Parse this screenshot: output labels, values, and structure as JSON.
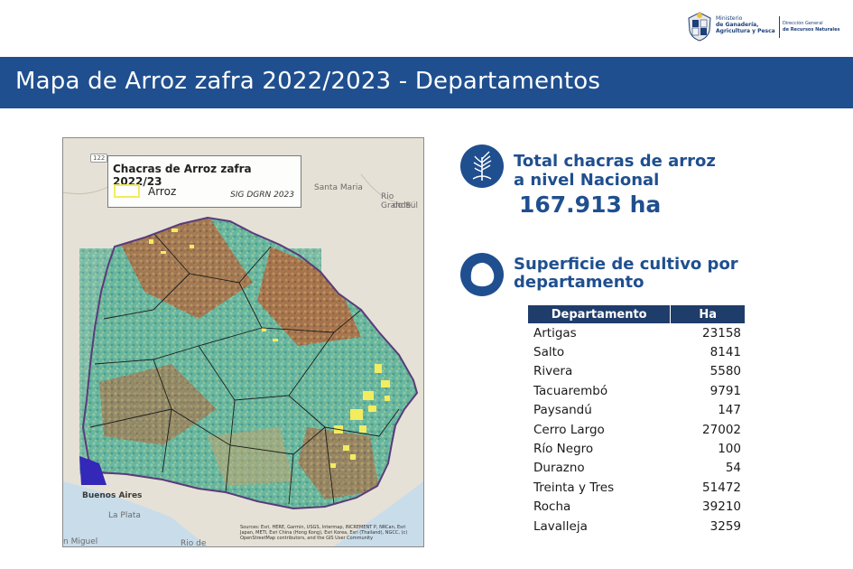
{
  "header": {
    "ministry_line1": "Ministerio",
    "ministry_line2": "de Ganadería,",
    "ministry_line3": "Agricultura y Pesca",
    "direction_line1": "Dirección General",
    "direction_line2": "de Recursos Naturales"
  },
  "title": "Mapa de Arroz zafra 2022/2023 - Departamentos",
  "map": {
    "legend_title": "Chacras de Arroz zafra 2022/23",
    "legend_label": "Arroz",
    "legend_credit": "SIG DGRN 2023",
    "place_labels": {
      "santa_maria": "Santa Maria",
      "rio_grande": "Rio Grande",
      "do_sul": "do Sul",
      "buenos_aires": "Buenos Aires",
      "la_plata": "La Plata",
      "san_miguel": "n Miguel",
      "rio_de": "Rio de",
      "road_badge": "122"
    },
    "sources": "Sources: Esri, HERE, Garmin, USGS, Intermap, INCREMENT P, NRCan, Esri Japan, METI, Esri China (Hong Kong), Esri Korea, Esri (Thailand), NGCC, (c) OpenStreetMap contributors, and the GIS User Community"
  },
  "stats": {
    "total_title_line1": "Total chacras de arroz",
    "total_title_line2": "a nivel Nacional",
    "total_value": "167.913 ha",
    "section_title_line1": "Superficie de cultivo por",
    "section_title_line2": "departamento"
  },
  "table": {
    "headers": [
      "Departamento",
      "Ha"
    ],
    "rows": [
      {
        "dept": "Artigas",
        "ha": "23158"
      },
      {
        "dept": "Salto",
        "ha": "8141"
      },
      {
        "dept": "Rivera",
        "ha": "5580"
      },
      {
        "dept": "Tacuarembó",
        "ha": "9791"
      },
      {
        "dept": "Paysandú",
        "ha": "147"
      },
      {
        "dept": "Cerro Largo",
        "ha": "27002"
      },
      {
        "dept": "Río Negro",
        "ha": "100"
      },
      {
        "dept": "Durazno",
        "ha": "54"
      },
      {
        "dept": "Treinta y Tres",
        "ha": "51472"
      },
      {
        "dept": "Rocha",
        "ha": "39210"
      },
      {
        "dept": "Lavalleja",
        "ha": "3259"
      }
    ]
  },
  "colors": {
    "brand_blue": "#1f4f8f",
    "table_header": "#1f3d6b",
    "rice_yellow": "#f3ec5f"
  },
  "icons": {
    "rice": "rice-plant-icon",
    "uruguay": "uruguay-map-icon",
    "seal": "uruguay-seal-icon"
  }
}
